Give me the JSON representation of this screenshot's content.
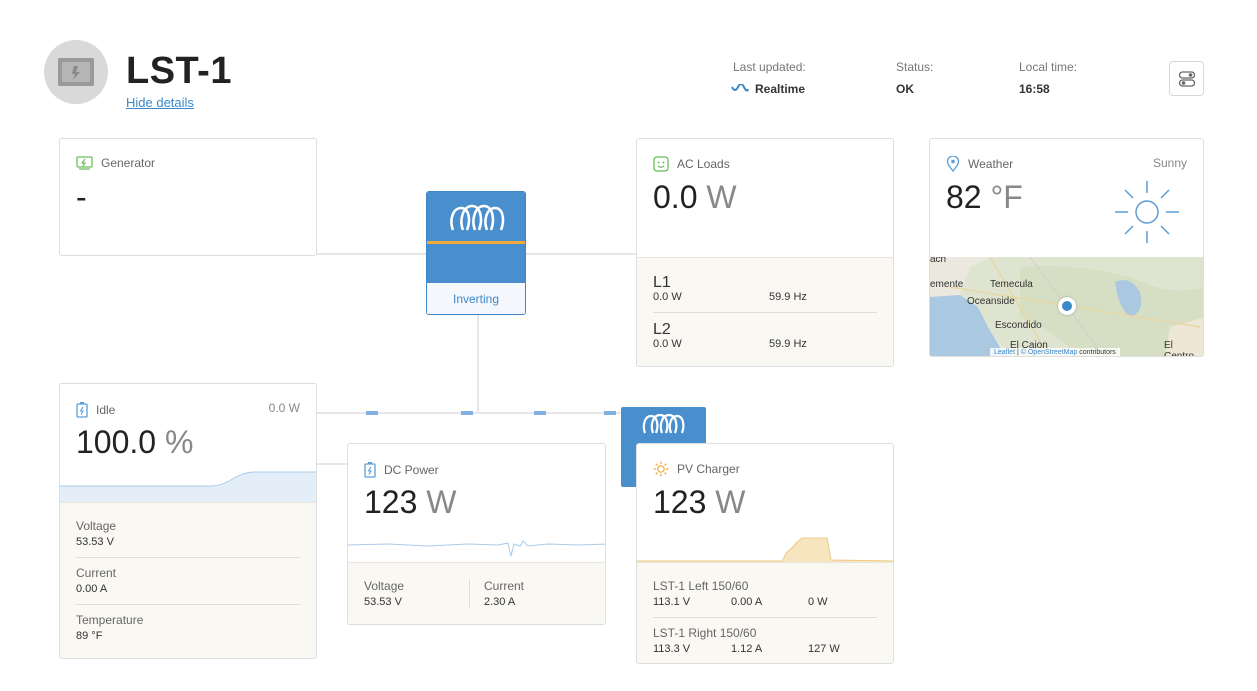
{
  "header": {
    "site_name": "LST-1",
    "hide_details": "Hide details",
    "last_updated_label": "Last updated:",
    "last_updated_value": "Realtime",
    "status_label": "Status:",
    "status_value": "OK",
    "local_time_label": "Local time:",
    "local_time_value": "16:58"
  },
  "generator": {
    "title": "Generator",
    "value": "-"
  },
  "inverter": {
    "state": "Inverting"
  },
  "ac_loads": {
    "title": "AC Loads",
    "value": "0.0",
    "unit": "W",
    "phases": [
      {
        "name": "L1",
        "power": "0.0 W",
        "frequency": "59.9 Hz"
      },
      {
        "name": "L2",
        "power": "0.0 W",
        "frequency": "59.9 Hz"
      }
    ]
  },
  "weather": {
    "title": "Weather",
    "condition": "Sunny",
    "temperature": "82",
    "unit": "°F",
    "map_labels": {
      "temecula": "Temecula",
      "oceanside": "Oceanside",
      "escondido": "Escondido",
      "el_cajon": "El Cajon",
      "el_centro": "El Centro",
      "clemente": "emente",
      "ach": "ach"
    },
    "attribution_leaflet": "Leaflet",
    "attribution_osm": "© OpenStreetMap",
    "attribution_rest": " contributors"
  },
  "battery": {
    "state": "Idle",
    "power": "0.0 W",
    "soc": "100.0",
    "unit": "%",
    "voltage_label": "Voltage",
    "voltage_value": "53.53 V",
    "current_label": "Current",
    "current_value": "0.00 A",
    "temperature_label": "Temperature",
    "temperature_value": "89 °F"
  },
  "dc_power": {
    "title": "DC Power",
    "value": "123",
    "unit": "W",
    "voltage_label": "Voltage",
    "voltage_value": "53.53 V",
    "current_label": "Current",
    "current_value": "2.30 A"
  },
  "pv_charger": {
    "title": "PV Charger",
    "value": "123",
    "unit": "W",
    "chargers": [
      {
        "name": "LST-1 Left 150/60",
        "voltage": "113.1 V",
        "current": "0.00 A",
        "power": "0 W"
      },
      {
        "name": "LST-1 Right 150/60",
        "voltage": "113.3 V",
        "current": "1.12 A",
        "power": "127 W"
      }
    ]
  },
  "colors": {
    "accent_blue": "#4a8fcd",
    "inverter_stripe": "#f0a838",
    "link_blue": "#3c88c8",
    "details_bg": "#faf8f3",
    "pv_chart": "#f3d9a4",
    "battery_chart": "#e3eef8"
  }
}
